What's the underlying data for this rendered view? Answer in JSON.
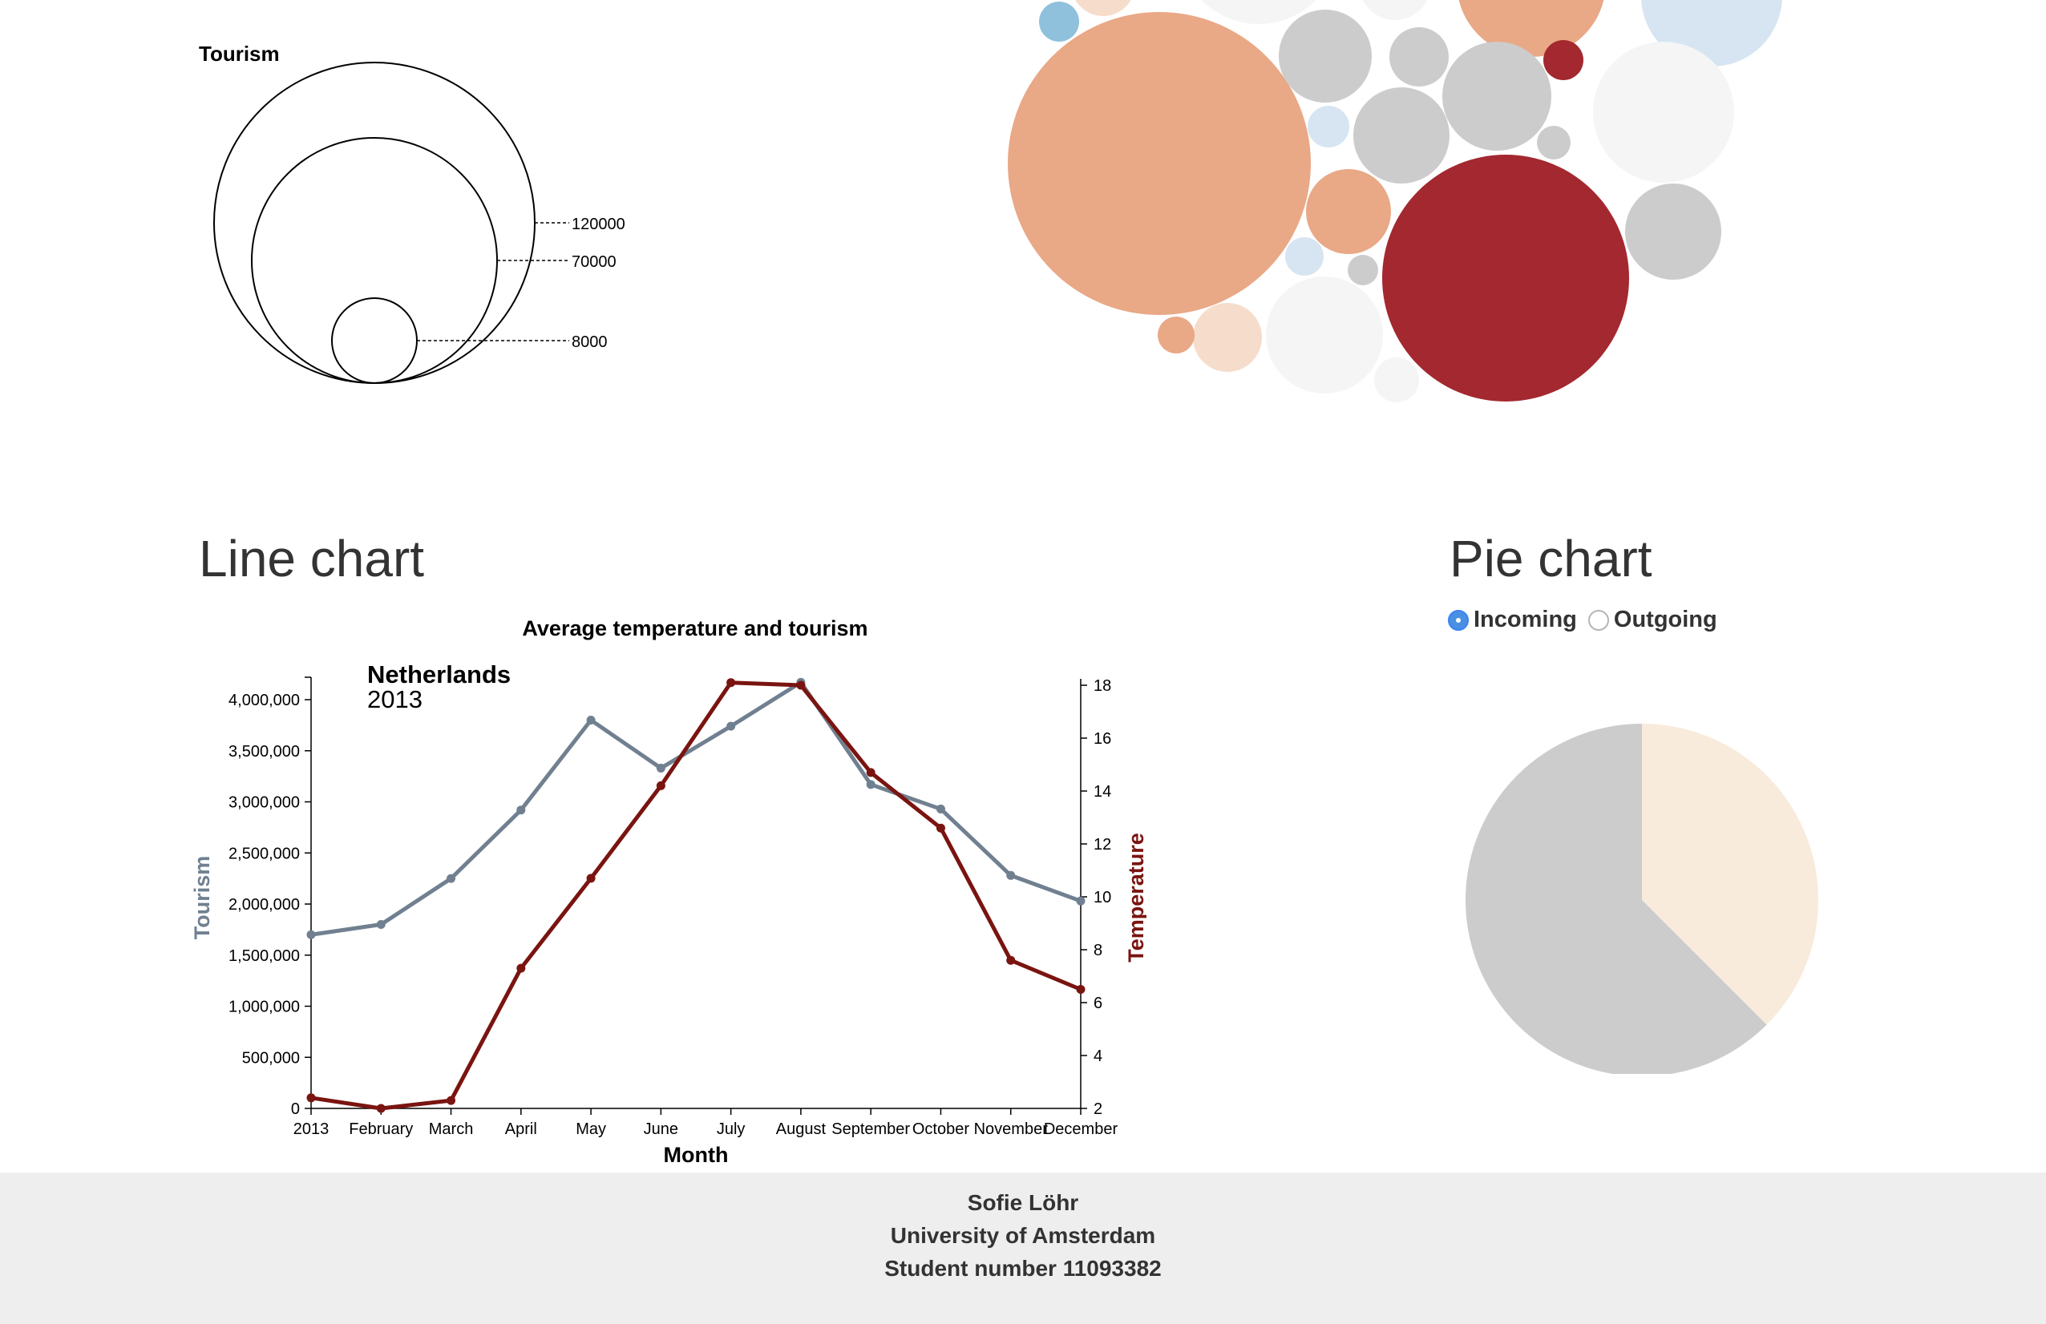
{
  "size_legend": {
    "title": "Tourism",
    "labels": [
      "120000",
      "70000",
      "8000"
    ]
  },
  "bubble_chart": {
    "colors": {
      "dark_red": "#a3282f",
      "salmon": "#e9a886",
      "light_salmon": "#f6dccb",
      "light_grey": "#f5f5f5",
      "grey": "#cccccc",
      "light_blue": "#d6e5f1",
      "blue": "#8fc1dd"
    }
  },
  "line_section": {
    "heading": "Line chart",
    "chart_title": "Average temperature and tourism",
    "country": "Netherlands",
    "year": "2013"
  },
  "pie_section": {
    "heading": "Pie chart",
    "options": [
      {
        "label": "Incoming",
        "checked": true
      },
      {
        "label": "Outgoing",
        "checked": false
      }
    ]
  },
  "chart_data": [
    {
      "type": "line",
      "title": "Average temperature and tourism",
      "xlabel": "Month",
      "ylabel": "Tourism",
      "y2label": "Temperature",
      "categories": [
        "2013",
        "February",
        "March",
        "April",
        "May",
        "June",
        "July",
        "August",
        "September",
        "October",
        "November",
        "December"
      ],
      "ylim": [
        0,
        4000000
      ],
      "y_ticks": [
        "0",
        "500,000",
        "1,000,000",
        "1,500,000",
        "2,000,000",
        "2,500,000",
        "3,000,000",
        "3,500,000",
        "4,000,000"
      ],
      "y2lim": [
        2,
        18
      ],
      "y2_ticks": [
        "2",
        "4",
        "6",
        "8",
        "10",
        "12",
        "14",
        "16",
        "18"
      ],
      "series": [
        {
          "name": "Tourism",
          "axis": "left",
          "color": "#708090",
          "values": [
            1700000,
            1800000,
            2250000,
            2920000,
            3800000,
            3330000,
            3740000,
            4170000,
            3170000,
            2930000,
            2280000,
            2030000
          ]
        },
        {
          "name": "Temperature",
          "axis": "right",
          "color": "#7a1410",
          "values": [
            2.4,
            2.0,
            2.3,
            7.3,
            10.7,
            14.2,
            18.1,
            18.0,
            14.7,
            12.6,
            7.6,
            6.5
          ]
        }
      ]
    },
    {
      "type": "pie",
      "slices": [
        {
          "value": 0.375,
          "color": "#f8ebdc"
        },
        {
          "value": 0.625,
          "color": "#cccccc"
        }
      ]
    }
  ],
  "footer": {
    "lines": [
      "Sofie Löhr",
      "University of Amsterdam",
      "Student number 11093382"
    ]
  }
}
